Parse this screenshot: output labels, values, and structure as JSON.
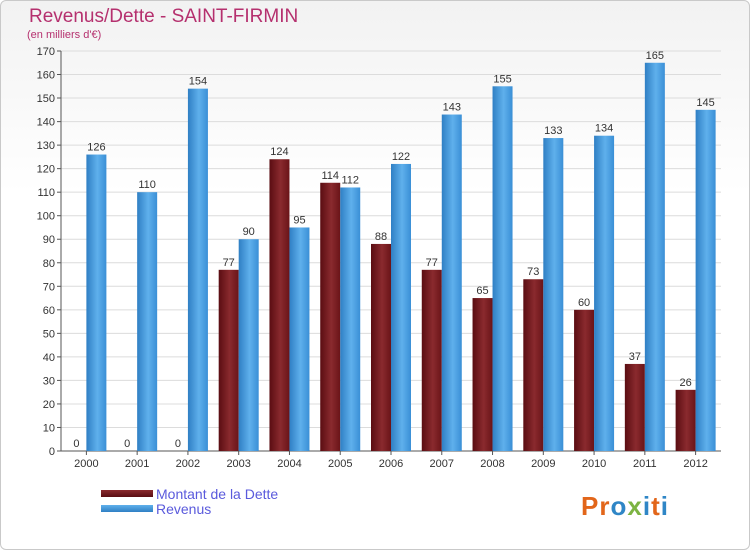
{
  "title": "Revenus/Dette - SAINT-FIRMIN",
  "subtitle": "(en milliers d'€)",
  "logo": {
    "text": "Proxiti",
    "colors": [
      "#e2661a",
      "#e2661a",
      "#2f86c6",
      "#7cb342",
      "#2f86c6",
      "#e2661a",
      "#2f86c6"
    ]
  },
  "colors": {
    "dette": "#7a1c20",
    "revenus": "#4ba3e3",
    "title": "#b5306e",
    "legend_text": "#5a5adc"
  },
  "chart_data": {
    "type": "bar",
    "categories": [
      "2000",
      "2001",
      "2002",
      "2003",
      "2004",
      "2005",
      "2006",
      "2007",
      "2008",
      "2009",
      "2010",
      "2011",
      "2012"
    ],
    "series": [
      {
        "name": "Montant de la Dette",
        "values": [
          0,
          0,
          0,
          77,
          124,
          114,
          88,
          77,
          65,
          73,
          60,
          37,
          26
        ]
      },
      {
        "name": "Revenus",
        "values": [
          126,
          110,
          154,
          90,
          95,
          112,
          122,
          143,
          155,
          133,
          134,
          165,
          145
        ]
      }
    ],
    "ylim": [
      0,
      170
    ],
    "yticks": [
      0,
      10,
      20,
      30,
      40,
      50,
      60,
      70,
      80,
      90,
      100,
      110,
      120,
      130,
      140,
      150,
      160,
      170
    ],
    "grid": true,
    "legend": "bottom-left",
    "xlabel": "",
    "ylabel": ""
  }
}
